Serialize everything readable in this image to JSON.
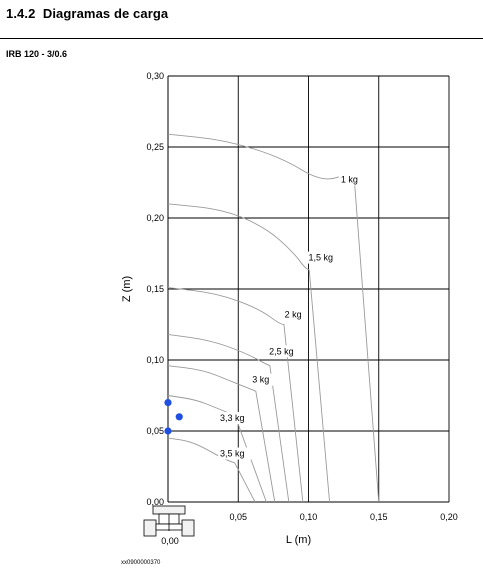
{
  "section": {
    "number": "1.4.2",
    "title": "Diagramas de carga"
  },
  "subheading": "IRB 120 - 3/0.6",
  "figure_id": "xx0900000370",
  "colors": {
    "grid": "#000000",
    "curve": "#9a9a9a",
    "point": "#1f4fe0"
  },
  "chart_data": {
    "type": "line",
    "xlabel": "L (m)",
    "ylabel": "Z (m)",
    "xlim": [
      0,
      0.2
    ],
    "ylim": [
      0,
      0.3
    ],
    "xticks": [
      "0,05",
      "0,10",
      "0,15",
      "0,20"
    ],
    "yticks": [
      "0,00",
      "0,05",
      "0,10",
      "0,15",
      "0,20",
      "0,25",
      "0,30"
    ],
    "origin_x_label": "0,00",
    "grid": true,
    "series": [
      {
        "name": "1 kg",
        "label_at": [
          0.123,
          0.225
        ],
        "points": [
          [
            0,
            0.259
          ],
          [
            0.04,
            0.255
          ],
          [
            0.08,
            0.243
          ],
          [
            0.11,
            0.225
          ],
          [
            0.13,
            0.232
          ],
          [
            0.135,
            0.225
          ],
          [
            0.15,
            0
          ]
        ]
      },
      {
        "name": "1,5 kg",
        "label_at": [
          0.1,
          0.17
        ],
        "points": [
          [
            0,
            0.21
          ],
          [
            0.04,
            0.206
          ],
          [
            0.07,
            0.193
          ],
          [
            0.09,
            0.175
          ],
          [
            0.098,
            0.164
          ],
          [
            0.103,
            0.163
          ],
          [
            0.115,
            0
          ]
        ]
      },
      {
        "name": "2 kg",
        "label_at": [
          0.083,
          0.13
        ],
        "points": [
          [
            0,
            0.151
          ],
          [
            0.035,
            0.147
          ],
          [
            0.065,
            0.136
          ],
          [
            0.08,
            0.125
          ],
          [
            0.085,
            0.125
          ],
          [
            0.096,
            0
          ]
        ]
      },
      {
        "name": "2,5 kg",
        "label_at": [
          0.072,
          0.104
        ],
        "points": [
          [
            0,
            0.118
          ],
          [
            0.03,
            0.114
          ],
          [
            0.055,
            0.105
          ],
          [
            0.07,
            0.097
          ],
          [
            0.075,
            0.095
          ],
          [
            0.086,
            0
          ]
        ]
      },
      {
        "name": "3 kg",
        "label_at": [
          0.06,
          0.084
        ],
        "points": [
          [
            0,
            0.096
          ],
          [
            0.025,
            0.093
          ],
          [
            0.045,
            0.085
          ],
          [
            0.06,
            0.079
          ],
          [
            0.065,
            0.077
          ],
          [
            0.076,
            0
          ]
        ]
      },
      {
        "name": "3,3 kg",
        "label_at": [
          0.037,
          0.057
        ],
        "points": [
          [
            0,
            0.075
          ],
          [
            0.02,
            0.072
          ],
          [
            0.035,
            0.066
          ],
          [
            0.045,
            0.062
          ],
          [
            0.05,
            0.061
          ],
          [
            0.07,
            0
          ]
        ]
      },
      {
        "name": "3,5 kg",
        "label_at": [
          0.037,
          0.032
        ],
        "points": [
          [
            0,
            0.045
          ],
          [
            0.015,
            0.043
          ],
          [
            0.028,
            0.037
          ],
          [
            0.04,
            0.03
          ],
          [
            0.055,
            0.025
          ],
          [
            0.062,
            0
          ]
        ]
      }
    ],
    "points_marked": [
      [
        0,
        0.07
      ],
      [
        0.008,
        0.06
      ],
      [
        0,
        0.05
      ]
    ]
  }
}
